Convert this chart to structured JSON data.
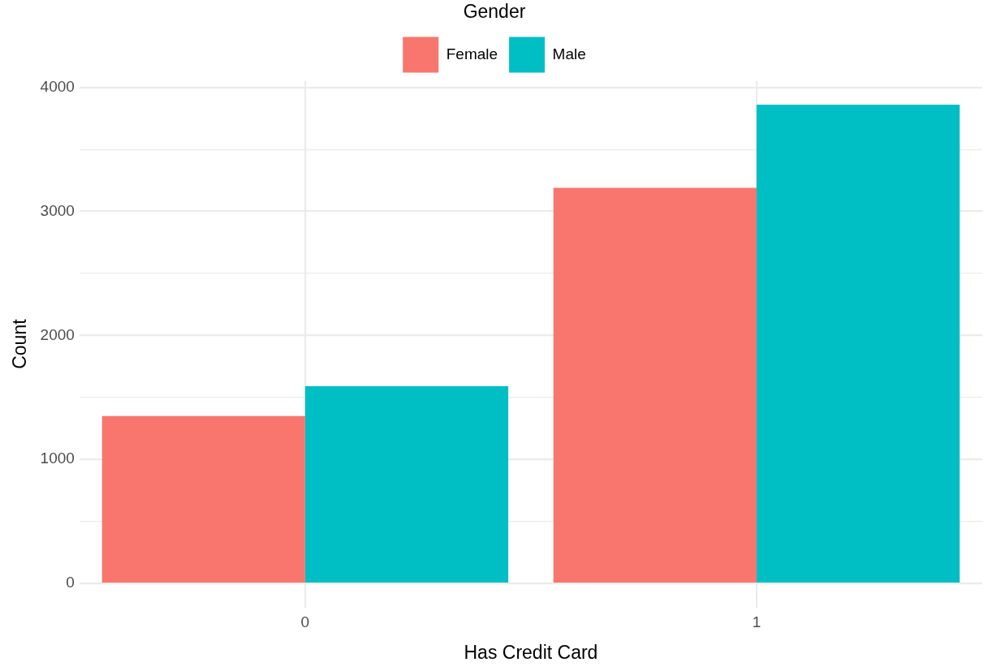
{
  "chart_data": {
    "type": "bar",
    "xlabel": "Has Credit Card",
    "ylabel": "Count",
    "legend_title": "Gender",
    "categories": [
      "0",
      "1"
    ],
    "series": [
      {
        "name": "Female",
        "color": "#f8766d",
        "values": [
          1350,
          3190
        ]
      },
      {
        "name": "Male",
        "color": "#00bfc4",
        "values": [
          1590,
          3860
        ]
      }
    ],
    "ylim": [
      -193,
      4053
    ],
    "yticks": [
      0,
      {
        "value": 500,
        "label": null
      },
      1000,
      {
        "value": 1500,
        "label": null
      },
      2000,
      {
        "value": 2500,
        "label": null
      },
      3000,
      {
        "value": 3500,
        "label": null
      },
      4000
    ],
    "grid": true,
    "legend": "top"
  }
}
